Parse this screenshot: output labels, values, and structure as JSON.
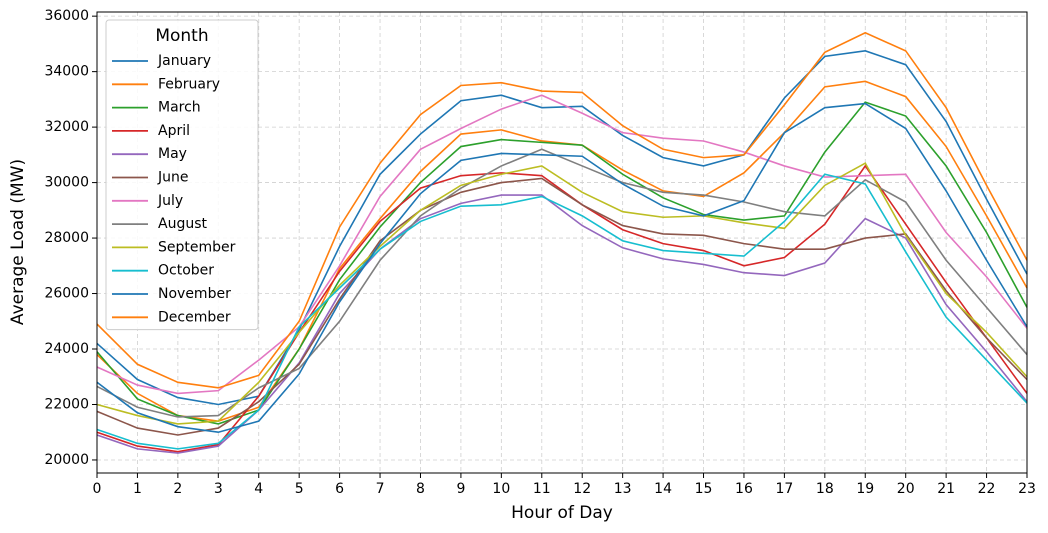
{
  "chart_data": {
    "type": "line",
    "x_label": "Hour of Day",
    "y_label": "Average Load (MW)",
    "x": [
      0,
      1,
      2,
      3,
      4,
      5,
      6,
      7,
      8,
      9,
      10,
      11,
      12,
      13,
      14,
      15,
      16,
      17,
      18,
      19,
      20,
      21,
      22,
      23
    ],
    "xlim": [
      0,
      23
    ],
    "xticks": [
      0,
      1,
      2,
      3,
      4,
      5,
      6,
      7,
      8,
      9,
      10,
      11,
      12,
      13,
      14,
      15,
      16,
      17,
      18,
      19,
      20,
      21,
      22,
      23
    ],
    "ylim": [
      19530,
      36150
    ],
    "yticks": [
      20000,
      22000,
      24000,
      26000,
      28000,
      30000,
      32000,
      34000,
      36000
    ],
    "grid": true,
    "legend_title": "Month",
    "legend_position": "upper left",
    "series": [
      {
        "name": "January",
        "color": "#1f77b4",
        "values": [
          24200,
          22900,
          22250,
          22000,
          22300,
          24700,
          27700,
          30300,
          31750,
          32950,
          33150,
          32700,
          32750,
          31700,
          30900,
          30600,
          31000,
          33050,
          34550,
          34750,
          34250,
          32200,
          29400,
          26700
        ]
      },
      {
        "name": "February",
        "color": "#ff7f0e",
        "values": [
          23800,
          22400,
          21600,
          21400,
          21900,
          24000,
          26900,
          28700,
          30400,
          31750,
          31900,
          31500,
          31350,
          30450,
          29700,
          29500,
          30350,
          31800,
          33450,
          33650,
          33100,
          31300,
          28800,
          26200
        ]
      },
      {
        "name": "March",
        "color": "#2ca02c",
        "values": [
          23900,
          22200,
          21600,
          21300,
          21800,
          24000,
          26500,
          28400,
          30000,
          31300,
          31550,
          31450,
          31350,
          30300,
          29450,
          28850,
          28650,
          28800,
          31100,
          32900,
          32400,
          30600,
          28200,
          25500
        ]
      },
      {
        "name": "April",
        "color": "#d62728",
        "values": [
          21000,
          20500,
          20300,
          20550,
          22300,
          24600,
          26800,
          28600,
          29800,
          30250,
          30350,
          30250,
          29200,
          28300,
          27800,
          27550,
          27000,
          27300,
          28500,
          30600,
          28500,
          26400,
          24400,
          22400
        ]
      },
      {
        "name": "May",
        "color": "#9467bd",
        "values": [
          20900,
          20400,
          20250,
          20500,
          21800,
          23500,
          26000,
          27600,
          28700,
          29250,
          29550,
          29550,
          28450,
          27650,
          27250,
          27050,
          26750,
          26650,
          27100,
          28700,
          28000,
          25600,
          23900,
          22100
        ]
      },
      {
        "name": "June",
        "color": "#8c564b",
        "values": [
          21750,
          21150,
          20900,
          21150,
          22100,
          23450,
          25800,
          27900,
          29000,
          29650,
          30000,
          30150,
          29200,
          28450,
          28150,
          28100,
          27800,
          27600,
          27600,
          28000,
          28150,
          26100,
          24400,
          22900
        ]
      },
      {
        "name": "July",
        "color": "#e377c2",
        "values": [
          23350,
          22700,
          22400,
          22500,
          23600,
          24800,
          27000,
          29500,
          31200,
          31950,
          32650,
          33150,
          32500,
          31800,
          31600,
          31500,
          31100,
          30600,
          30200,
          30250,
          30300,
          28200,
          26600,
          24750
        ]
      },
      {
        "name": "August",
        "color": "#7f7f7f",
        "values": [
          22650,
          21900,
          21550,
          21600,
          22600,
          23300,
          25000,
          27200,
          28800,
          29800,
          30600,
          31200,
          30600,
          30000,
          29650,
          29550,
          29300,
          28950,
          28800,
          30100,
          29300,
          27200,
          25500,
          23800
        ]
      },
      {
        "name": "September",
        "color": "#bcbd22",
        "values": [
          22000,
          21600,
          21300,
          21400,
          22800,
          24600,
          26300,
          27700,
          29000,
          29900,
          30300,
          30600,
          29650,
          28950,
          28750,
          28800,
          28550,
          28350,
          29900,
          30700,
          28100,
          26000,
          24600,
          23000
        ]
      },
      {
        "name": "October",
        "color": "#17becf",
        "values": [
          21100,
          20600,
          20400,
          20600,
          21800,
          24800,
          26200,
          27600,
          28600,
          29150,
          29200,
          29500,
          28800,
          27900,
          27550,
          27450,
          27350,
          28600,
          30300,
          29950,
          27500,
          25150,
          23600,
          22050
        ]
      },
      {
        "name": "November",
        "color": "#1f77b4",
        "values": [
          22800,
          21700,
          21200,
          21000,
          21400,
          23100,
          25700,
          27800,
          29600,
          30800,
          31050,
          31000,
          30950,
          29950,
          29150,
          28800,
          29350,
          31800,
          32700,
          32850,
          31950,
          29700,
          27200,
          24800
        ]
      },
      {
        "name": "December",
        "color": "#ff7f0e",
        "values": [
          24900,
          23450,
          22800,
          22600,
          23050,
          25000,
          28400,
          30700,
          32450,
          33500,
          33600,
          33300,
          33250,
          32050,
          31200,
          30900,
          31000,
          32800,
          34700,
          35400,
          34750,
          32700,
          29900,
          27200
        ]
      }
    ]
  }
}
